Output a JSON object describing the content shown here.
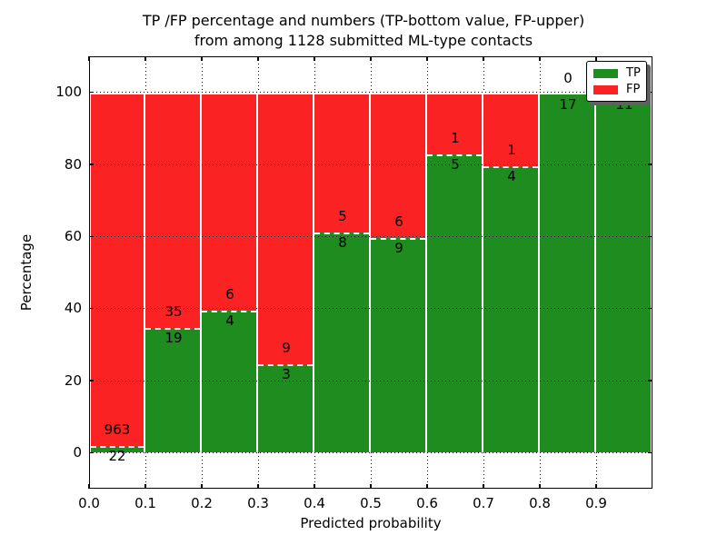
{
  "title": {
    "line1": "TP /FP percentage and numbers (TP-bottom value, FP-upper)",
    "line2": "from among 1128 submitted ML-type contacts"
  },
  "axes": {
    "ylabel": "Percentage",
    "xlabel": "Predicted probability",
    "ytick_labels": [
      "0",
      "20",
      "40",
      "60",
      "80",
      "100"
    ],
    "yticks": [
      0,
      20,
      40,
      60,
      80,
      100
    ],
    "xtick_labels": [
      "0.0",
      "0.1",
      "0.2",
      "0.3",
      "0.4",
      "0.5",
      "0.6",
      "0.7",
      "0.8",
      "0.9"
    ],
    "xticks": [
      0.0,
      0.1,
      0.2,
      0.3,
      0.4,
      0.5,
      0.6,
      0.7,
      0.8,
      0.9
    ]
  },
  "legend": {
    "entries": [
      {
        "label": "TP",
        "color": "#1e8c1e"
      },
      {
        "label": "FP",
        "color": "#fa2222"
      }
    ]
  },
  "chart_data": {
    "type": "bar",
    "subtype": "stacked-100-percent",
    "title": "TP /FP percentage and numbers (TP-bottom value, FP-upper) from among 1128 submitted ML-type contacts",
    "xlabel": "Predicted probability",
    "ylabel": "Percentage",
    "total_contacts": 1128,
    "xlim": [
      0.0,
      1.0
    ],
    "ylim": [
      -10,
      110
    ],
    "grid": "dotted black, x and y",
    "bar_edge_style": "white dashed",
    "legend_position": "upper right",
    "bin_edges": [
      0.0,
      0.1,
      0.2,
      0.3,
      0.4,
      0.5,
      0.6,
      0.7,
      0.8,
      0.9,
      1.0
    ],
    "categories": [
      "0.0-0.1",
      "0.1-0.2",
      "0.2-0.3",
      "0.3-0.4",
      "0.4-0.5",
      "0.5-0.6",
      "0.6-0.7",
      "0.7-0.8",
      "0.8-0.9",
      "0.9-1.0"
    ],
    "series": [
      {
        "name": "TP",
        "color": "#1e8c1e",
        "counts": [
          22,
          19,
          4,
          3,
          8,
          9,
          5,
          4,
          17,
          11
        ]
      },
      {
        "name": "FP",
        "color": "#fa2222",
        "counts": [
          963,
          35,
          6,
          9,
          5,
          6,
          1,
          1,
          0,
          0
        ]
      }
    ],
    "tp_percent": [
      2.2,
      35.2,
      40.0,
      25.0,
      61.5,
      60.0,
      83.3,
      80.0,
      100.0,
      100.0
    ]
  }
}
